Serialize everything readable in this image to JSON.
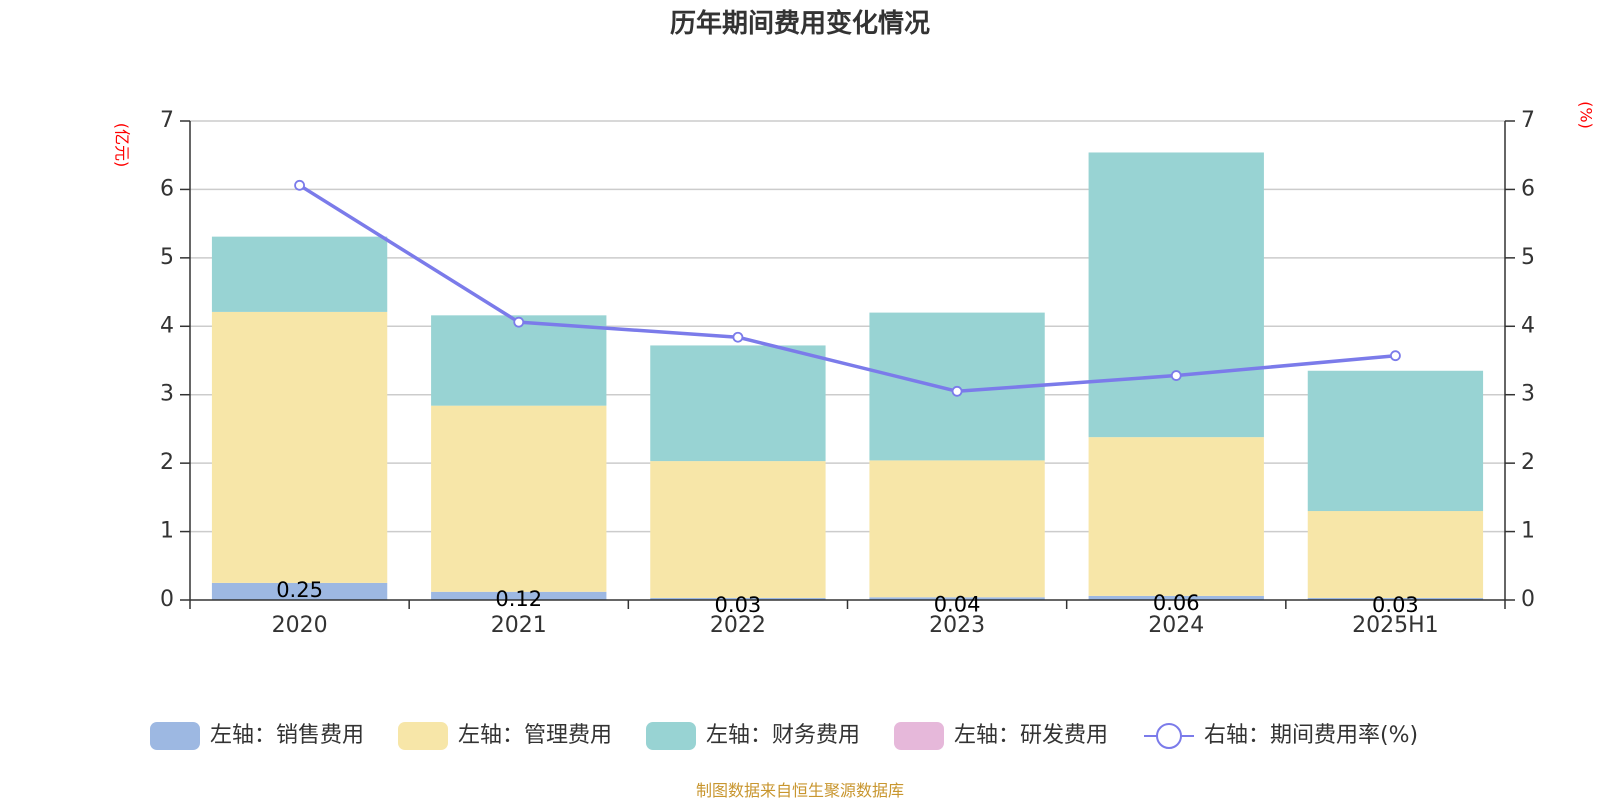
{
  "chart_data": {
    "type": "bar",
    "title": "历年期间费用变化情况",
    "categories": [
      "2020",
      "2021",
      "2022",
      "2023",
      "2024",
      "2025H1"
    ],
    "left_axis": {
      "unit": "(亿元)",
      "ylim": [
        0,
        7
      ],
      "ticks": [
        0,
        1,
        2,
        3,
        4,
        5,
        6,
        7
      ]
    },
    "right_axis": {
      "unit": "(%)",
      "ylim": [
        0,
        7
      ],
      "ticks": [
        0,
        1,
        2,
        3,
        4,
        5,
        6,
        7
      ]
    },
    "series": [
      {
        "name": "左轴：销售费用",
        "axis": "left",
        "kind": "bar",
        "color": "#9db8e2",
        "values": [
          0.25,
          0.12,
          0.03,
          0.04,
          0.06,
          0.03
        ],
        "labels": [
          "0.25",
          "0.12",
          "0.03",
          "0.04",
          "0.06",
          "0.03"
        ]
      },
      {
        "name": "左轴：管理费用",
        "axis": "left",
        "kind": "bar",
        "color": "#f7e6a8",
        "values": [
          3.96,
          2.72,
          2.0,
          2.0,
          2.32,
          1.27
        ]
      },
      {
        "name": "左轴：财务费用",
        "axis": "left",
        "kind": "bar",
        "color": "#98d3d3",
        "values": [
          1.1,
          1.32,
          1.69,
          2.16,
          4.16,
          2.05
        ]
      },
      {
        "name": "左轴：研发费用",
        "axis": "left",
        "kind": "bar",
        "color": "#e6b8da",
        "values": [
          0,
          0,
          0,
          0,
          0,
          0
        ]
      },
      {
        "name": "右轴：期间费用率(%)",
        "axis": "right",
        "kind": "line",
        "color": "#7b7bea",
        "values": [
          6.06,
          4.06,
          3.84,
          3.05,
          3.28,
          3.57
        ]
      }
    ],
    "grid": true,
    "legend": "bottom",
    "source": "制图数据来自恒生聚源数据库"
  }
}
